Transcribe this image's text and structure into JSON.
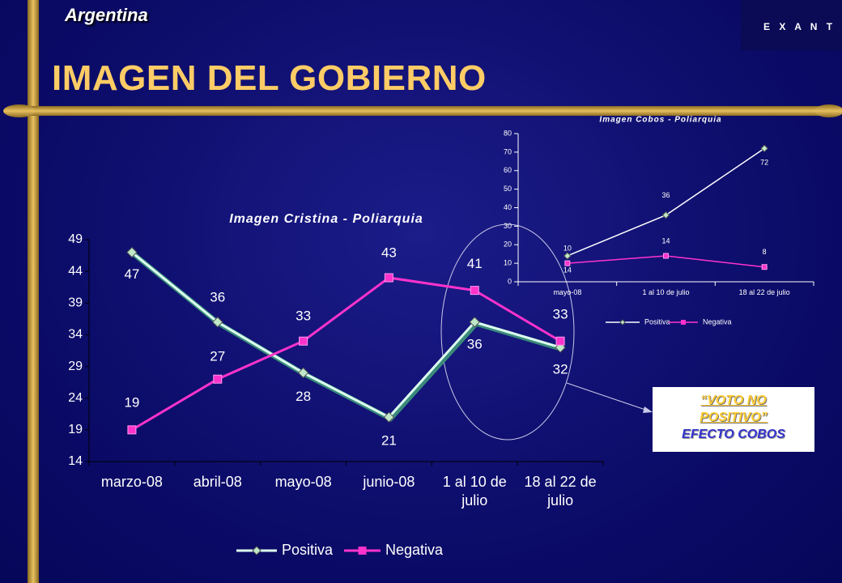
{
  "header": {
    "country": "Argentina",
    "title": "IMAGEN DEL GOBIERNO",
    "logo": "E X A N T E"
  },
  "callout": {
    "line1": "“VOTO NO POSITIVO”",
    "line2": "EFECTO COBOS"
  },
  "chart_data": [
    {
      "type": "line",
      "title": "Imagen Cristina - Poliarquia",
      "categories": [
        "marzo-08",
        "abril-08",
        "mayo-08",
        "junio-08",
        "1 al 10 de julio",
        "18 al 22 de julio"
      ],
      "series": [
        {
          "name": "Positiva",
          "color": "#ddfff0",
          "values": [
            47,
            36,
            28,
            21,
            36,
            32
          ]
        },
        {
          "name": "Negativa",
          "color": "#ff33cc",
          "values": [
            19,
            27,
            33,
            43,
            41,
            33
          ]
        }
      ],
      "ylim": [
        14,
        49
      ],
      "yticks": [
        14,
        19,
        24,
        29,
        34,
        39,
        44,
        49
      ]
    },
    {
      "type": "line",
      "title": "Imagen Cobos - Poliarquia",
      "categories": [
        "mayo-08",
        "1 al 10 de julio",
        "18 al 22 de julio"
      ],
      "series": [
        {
          "name": "Positiva",
          "color": "#ffffff",
          "values": [
            14,
            36,
            72
          ]
        },
        {
          "name": "Negativa",
          "color": "#ff33cc",
          "values": [
            10,
            14,
            8
          ]
        }
      ],
      "ylim": [
        0,
        80
      ],
      "yticks": [
        0,
        10,
        20,
        30,
        40,
        50,
        60,
        70,
        80
      ]
    }
  ]
}
